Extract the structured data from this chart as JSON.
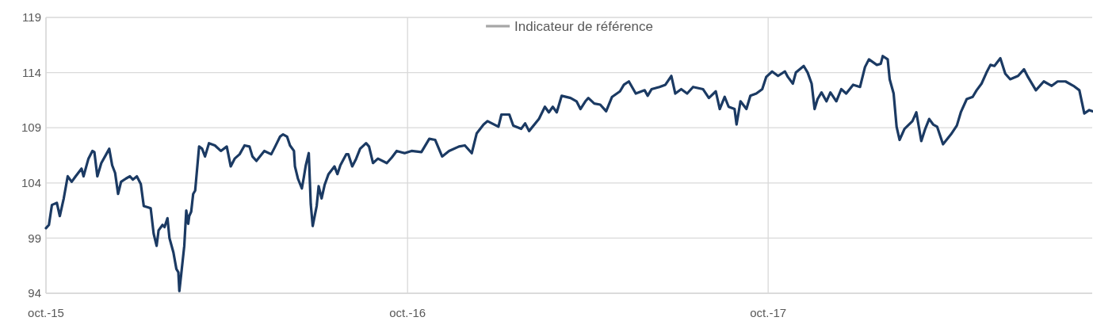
{
  "chart_data": {
    "type": "line",
    "xlim": [
      "2015-10-01",
      "2018-08-25"
    ],
    "xticks": [
      {
        "value": "2015-10-01",
        "label": "oct.-15"
      },
      {
        "value": "2016-10-01",
        "label": "oct.-16"
      },
      {
        "value": "2017-10-01",
        "label": "oct.-17"
      }
    ],
    "ylim": [
      94,
      119
    ],
    "yticks": [
      94,
      99,
      104,
      109,
      114,
      119
    ],
    "grid": true,
    "legend": "top",
    "marker": "none",
    "line_style": "solid",
    "series": [
      {
        "color": "#1b3a63",
        "x": [
          "2015-10-01",
          "2015-10-04",
          "2015-10-07",
          "2015-10-12",
          "2015-10-15",
          "2015-10-19",
          "2015-10-23",
          "2015-10-27",
          "2015-10-31",
          "2015-11-06",
          "2015-11-08",
          "2015-11-13",
          "2015-11-17",
          "2015-11-19",
          "2015-11-22",
          "2015-11-26",
          "2015-12-01",
          "2015-12-04",
          "2015-12-07",
          "2015-12-10",
          "2015-12-13",
          "2015-12-16",
          "2015-12-21",
          "2015-12-25",
          "2015-12-28",
          "2016-01-01",
          "2016-01-05",
          "2016-01-08",
          "2016-01-12",
          "2016-01-15",
          "2016-01-18",
          "2016-01-21",
          "2016-01-23",
          "2016-01-27",
          "2016-01-29",
          "2016-02-01",
          "2016-02-03",
          "2016-02-07",
          "2016-02-10",
          "2016-02-12",
          "2016-02-13",
          "2016-02-15",
          "2016-02-18",
          "2016-02-20",
          "2016-02-22",
          "2016-02-23",
          "2016-02-25",
          "2016-02-27",
          "2016-02-29",
          "2016-03-04",
          "2016-03-07",
          "2016-03-10",
          "2016-03-14",
          "2016-03-20",
          "2016-03-26",
          "2016-04-01",
          "2016-04-05",
          "2016-04-09",
          "2016-04-14",
          "2016-04-19",
          "2016-04-24",
          "2016-04-27",
          "2016-05-01",
          "2016-05-09",
          "2016-05-16",
          "2016-05-20",
          "2016-05-25",
          "2016-05-28",
          "2016-06-01",
          "2016-06-04",
          "2016-06-08",
          "2016-06-09",
          "2016-06-12",
          "2016-06-16",
          "2016-06-18",
          "2016-06-20",
          "2016-06-23",
          "2016-06-25",
          "2016-06-27",
          "2016-07-01",
          "2016-07-03",
          "2016-07-06",
          "2016-07-09",
          "2016-07-13",
          "2016-07-19",
          "2016-07-22",
          "2016-07-25",
          "2016-07-31",
          "2016-08-02",
          "2016-08-06",
          "2016-08-10",
          "2016-08-14",
          "2016-08-20",
          "2016-08-23",
          "2016-08-27",
          "2016-09-01",
          "2016-09-10",
          "2016-09-15",
          "2016-09-20",
          "2016-09-28",
          "2016-10-05",
          "2016-10-15",
          "2016-10-23",
          "2016-10-29",
          "2016-11-05",
          "2016-11-12",
          "2016-11-22",
          "2016-11-28",
          "2016-12-05",
          "2016-12-10",
          "2016-12-17",
          "2016-12-21",
          "2017-01-01",
          "2017-01-04",
          "2017-01-12",
          "2017-01-16",
          "2017-01-24",
          "2017-01-28",
          "2017-02-01",
          "2017-02-11",
          "2017-02-17",
          "2017-02-21",
          "2017-02-25",
          "2017-03-01",
          "2017-03-06",
          "2017-03-15",
          "2017-03-21",
          "2017-03-25",
          "2017-03-30",
          "2017-04-02",
          "2017-04-08",
          "2017-04-14",
          "2017-04-20",
          "2017-04-26",
          "2017-05-04",
          "2017-05-08",
          "2017-05-13",
          "2017-05-20",
          "2017-05-29",
          "2017-06-01",
          "2017-06-05",
          "2017-06-13",
          "2017-06-19",
          "2017-06-25",
          "2017-06-29",
          "2017-07-05",
          "2017-07-11",
          "2017-07-17",
          "2017-07-27",
          "2017-08-02",
          "2017-08-09",
          "2017-08-13",
          "2017-08-18",
          "2017-08-22",
          "2017-08-28",
          "2017-08-30",
          "2017-09-03",
          "2017-09-09",
          "2017-09-13",
          "2017-09-19",
          "2017-09-25",
          "2017-09-29",
          "2017-10-05",
          "2017-10-11",
          "2017-10-18",
          "2017-10-21",
          "2017-10-26",
          "2017-10-29",
          "2017-11-06",
          "2017-11-10",
          "2017-11-14",
          "2017-11-17",
          "2017-11-20",
          "2017-11-24",
          "2017-11-29",
          "2017-12-03",
          "2017-12-09",
          "2017-12-14",
          "2017-12-19",
          "2017-12-26",
          "2018-01-02",
          "2018-01-07",
          "2018-01-11",
          "2018-01-19",
          "2018-01-23",
          "2018-01-25",
          "2018-01-30",
          "2018-02-01",
          "2018-02-05",
          "2018-02-08",
          "2018-02-11",
          "2018-02-16",
          "2018-02-24",
          "2018-02-28",
          "2018-03-05",
          "2018-03-09",
          "2018-03-13",
          "2018-03-17",
          "2018-03-21",
          "2018-03-27",
          "2018-04-04",
          "2018-04-10",
          "2018-04-14",
          "2018-04-20",
          "2018-04-26",
          "2018-04-30",
          "2018-05-05",
          "2018-05-10",
          "2018-05-14",
          "2018-05-18",
          "2018-05-24",
          "2018-05-29",
          "2018-06-03",
          "2018-06-11",
          "2018-06-17",
          "2018-06-21",
          "2018-06-29",
          "2018-07-07",
          "2018-07-15",
          "2018-07-21",
          "2018-07-29",
          "2018-08-06",
          "2018-08-12",
          "2018-08-17",
          "2018-08-22",
          "2018-08-25"
        ],
        "values": [
          99.9,
          100.2,
          102.0,
          102.2,
          101.0,
          102.6,
          104.6,
          104.1,
          104.6,
          105.3,
          104.6,
          106.2,
          106.9,
          106.8,
          104.6,
          105.8,
          106.6,
          107.1,
          105.6,
          104.9,
          103.0,
          104.1,
          104.4,
          104.6,
          104.3,
          104.6,
          103.9,
          101.9,
          101.8,
          101.7,
          99.4,
          98.3,
          99.7,
          100.2,
          100.0,
          100.8,
          99.0,
          97.7,
          96.2,
          95.9,
          94.2,
          95.8,
          98.3,
          101.5,
          100.3,
          101.0,
          101.4,
          103.0,
          103.3,
          107.3,
          107.1,
          106.4,
          107.6,
          107.4,
          106.9,
          107.3,
          105.5,
          106.2,
          106.6,
          107.4,
          107.3,
          106.4,
          106.0,
          106.9,
          106.6,
          107.3,
          108.2,
          108.4,
          108.2,
          107.4,
          106.9,
          105.5,
          104.4,
          103.5,
          104.5,
          105.6,
          106.7,
          102.1,
          100.1,
          101.9,
          103.7,
          102.6,
          103.8,
          104.8,
          105.5,
          104.8,
          105.6,
          106.6,
          106.6,
          105.5,
          106.2,
          107.1,
          107.6,
          107.3,
          105.8,
          106.2,
          105.8,
          106.3,
          106.9,
          106.7,
          106.9,
          106.8,
          108.0,
          107.9,
          106.4,
          106.9,
          107.3,
          107.4,
          106.7,
          108.5,
          109.3,
          109.6,
          109.1,
          110.2,
          110.2,
          109.2,
          108.9,
          109.4,
          108.7,
          109.8,
          110.9,
          110.4,
          110.9,
          110.4,
          111.9,
          111.7,
          111.4,
          110.7,
          111.4,
          111.7,
          111.2,
          111.1,
          110.5,
          111.8,
          112.3,
          112.9,
          113.2,
          112.1,
          112.4,
          111.9,
          112.5,
          112.7,
          112.9,
          113.7,
          112.1,
          112.5,
          112.1,
          112.7,
          112.5,
          111.7,
          112.3,
          110.7,
          111.8,
          110.9,
          110.7,
          109.3,
          111.4,
          110.7,
          111.9,
          112.1,
          112.5,
          113.6,
          114.1,
          113.7,
          114.1,
          113.6,
          113.0,
          114.0,
          114.6,
          114.0,
          113.0,
          110.7,
          111.6,
          112.2,
          111.4,
          112.2,
          111.4,
          112.5,
          112.1,
          112.9,
          112.7,
          114.5,
          115.2,
          114.7,
          114.8,
          115.5,
          115.2,
          113.4,
          112.1,
          109.1,
          107.9,
          108.9,
          109.6,
          110.4,
          107.8,
          108.9,
          109.8,
          109.3,
          109.1,
          107.5,
          108.4,
          109.2,
          110.4,
          111.6,
          111.8,
          112.4,
          113.0,
          114.0,
          114.7,
          114.6,
          115.3,
          113.9,
          113.4,
          113.7,
          114.3,
          113.6,
          112.4,
          113.2,
          112.8,
          113.2,
          113.2,
          112.8,
          112.4,
          110.3,
          110.6,
          110.5
        ]
      },
      {
        "name": "Indicateur de référence",
        "color": "#a6a6a6"
      }
    ]
  }
}
